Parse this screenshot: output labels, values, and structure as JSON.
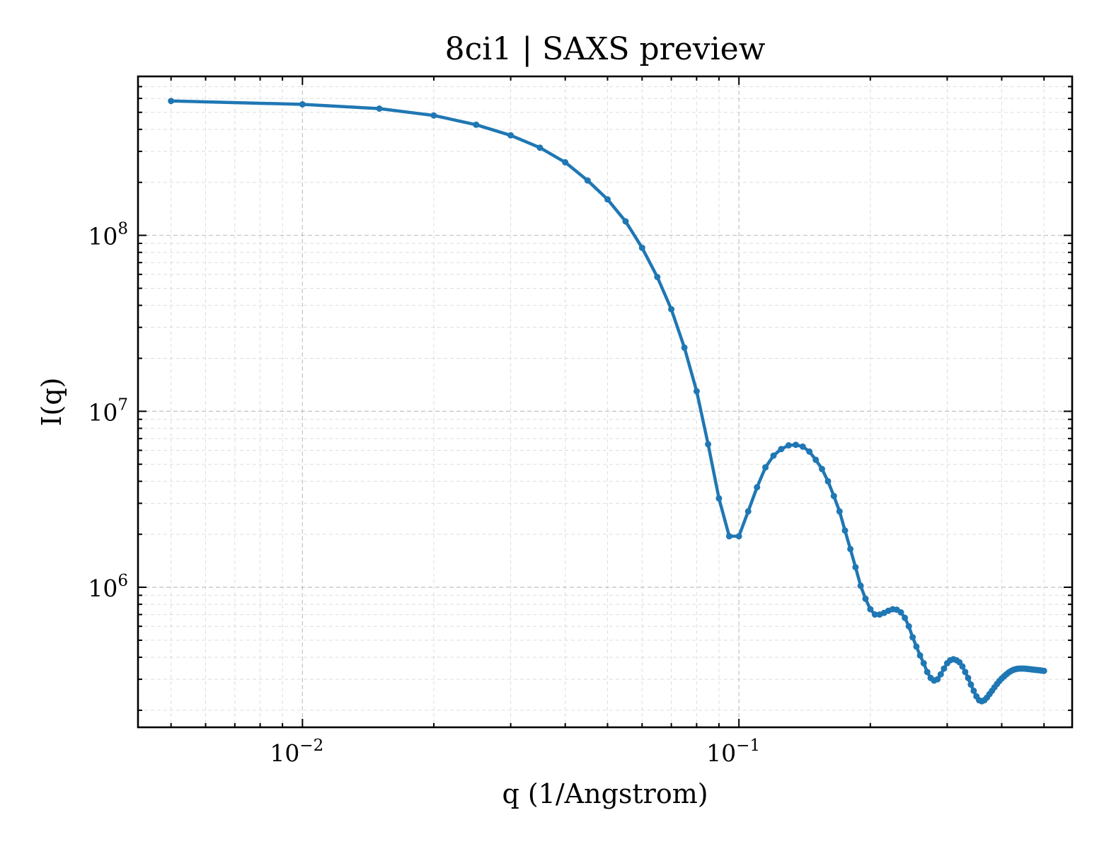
{
  "chart_data": {
    "type": "line",
    "title": "8ci1 | SAXS preview",
    "xlabel": "q (1/Angstrom)",
    "ylabel": "I(q)",
    "xscale": "log",
    "yscale": "log",
    "xlim": [
      0.0042,
      0.58
    ],
    "ylim": [
      160000,
      800000000
    ],
    "x_ticks": [
      {
        "base": "10",
        "exp": "−2",
        "value": 0.01
      },
      {
        "base": "10",
        "exp": "−1",
        "value": 0.1
      }
    ],
    "y_ticks": [
      {
        "base": "10",
        "exp": "6",
        "value": 1000000
      },
      {
        "base": "10",
        "exp": "7",
        "value": 10000000
      },
      {
        "base": "10",
        "exp": "8",
        "value": 100000000
      }
    ],
    "grid": true,
    "color": "#1f77b4",
    "series": [
      {
        "x": [
          0.005,
          0.01,
          0.015,
          0.02,
          0.025,
          0.03,
          0.035,
          0.04,
          0.045,
          0.05,
          0.055,
          0.06,
          0.065,
          0.07,
          0.075,
          0.08,
          0.085,
          0.09,
          0.095,
          0.1,
          0.105,
          0.11,
          0.115,
          0.12,
          0.125,
          0.13,
          0.135,
          0.14,
          0.145,
          0.15,
          0.155,
          0.16,
          0.165,
          0.17,
          0.175,
          0.18,
          0.185,
          0.19,
          0.195,
          0.2,
          0.205,
          0.21,
          0.215,
          0.22,
          0.225,
          0.23,
          0.235,
          0.24,
          0.245,
          0.25,
          0.255,
          0.26,
          0.265,
          0.27,
          0.275,
          0.28,
          0.285,
          0.29,
          0.295,
          0.3,
          0.305,
          0.31,
          0.315,
          0.32,
          0.325,
          0.33,
          0.335,
          0.34,
          0.345,
          0.35,
          0.355,
          0.36,
          0.365,
          0.37,
          0.375,
          0.38,
          0.385,
          0.39,
          0.395,
          0.4,
          0.405,
          0.41,
          0.415,
          0.42,
          0.425,
          0.43,
          0.435,
          0.44,
          0.445,
          0.45,
          0.455,
          0.46,
          0.465,
          0.47,
          0.475,
          0.48,
          0.485,
          0.49,
          0.495,
          0.5
        ],
        "y": [
          580000000,
          555000000,
          525000000,
          480000000,
          425000000,
          370000000,
          315000000,
          260000000,
          205000000,
          160000000,
          120000000,
          85000000,
          58000000,
          38000000,
          23000000,
          13000000,
          6500000,
          3200000,
          1950000,
          1950000,
          2700000,
          3700000,
          4800000,
          5600000,
          6100000,
          6400000,
          6450000,
          6300000,
          5900000,
          5300000,
          4700000,
          4000000,
          3300000,
          2700000,
          2100000,
          1650000,
          1300000,
          1020000,
          860000,
          750000,
          700000,
          700000,
          715000,
          735000,
          750000,
          745000,
          720000,
          670000,
          600000,
          520000,
          460000,
          410000,
          370000,
          330000,
          305000,
          295000,
          300000,
          320000,
          345000,
          370000,
          385000,
          390000,
          385000,
          375000,
          355000,
          330000,
          305000,
          280000,
          258000,
          240000,
          228000,
          225000,
          228000,
          236000,
          247000,
          258000,
          270000,
          282000,
          293000,
          303000,
          312000,
          320000,
          328000,
          334000,
          339000,
          342000,
          344000,
          345000,
          345000,
          345000,
          344000,
          343000,
          342000,
          341000,
          340000,
          339000,
          338000,
          337000,
          336000,
          335000
        ]
      }
    ]
  }
}
